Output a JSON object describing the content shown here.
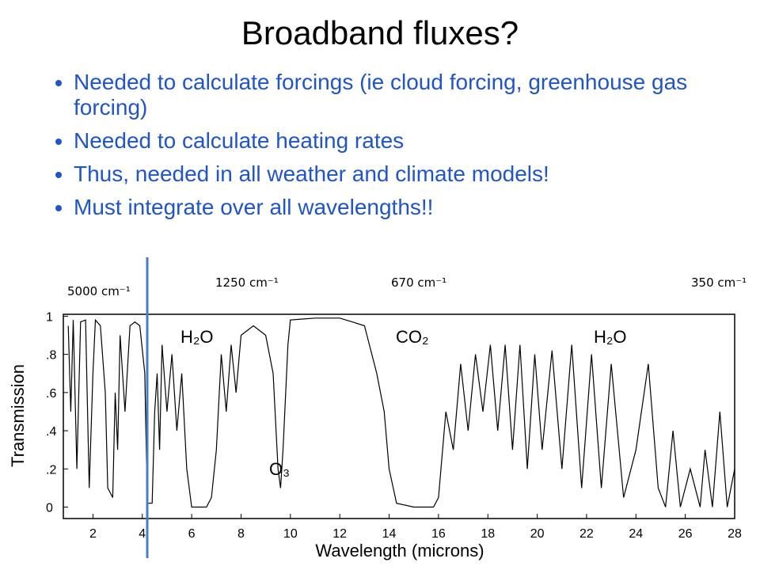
{
  "header": {
    "title": "Broadband fluxes?"
  },
  "bullets": [
    "Needed to calculate forcings (ie cloud forcing, greenhouse gas forcing)",
    "Needed to calculate heating rates",
    "Thus, needed in all weather and climate models!",
    "Must integrate over all wavelengths!!"
  ],
  "wavenumber_labels": [
    "5000 cm⁻¹",
    "1250 cm⁻¹",
    "670 cm⁻¹",
    "350 cm⁻¹"
  ],
  "chart_data": {
    "type": "line",
    "xlabel": "Wavelength (microns)",
    "ylabel": "Transmission",
    "annotations": [
      "H₂O",
      "CO₂",
      "H₂O",
      "O₃"
    ],
    "color": "#000000",
    "vline_x": 4.2,
    "vline_color": "#4a7bc4",
    "x": [
      1.0,
      1.1,
      1.2,
      1.35,
      1.5,
      1.7,
      1.85,
      2.0,
      2.1,
      2.3,
      2.5,
      2.6,
      2.8,
      2.9,
      3.0,
      3.1,
      3.3,
      3.5,
      3.7,
      3.9,
      4.1,
      4.2,
      4.4,
      4.5,
      4.6,
      4.7,
      4.8,
      5.0,
      5.2,
      5.4,
      5.6,
      5.8,
      6.0,
      6.3,
      6.6,
      6.8,
      7.0,
      7.2,
      7.4,
      7.6,
      7.8,
      8.0,
      8.5,
      9.0,
      9.3,
      9.5,
      9.6,
      9.7,
      9.9,
      10.0,
      11.0,
      12.0,
      12.5,
      13.0,
      13.5,
      13.8,
      14.0,
      14.3,
      15.0,
      15.8,
      16.0,
      16.3,
      16.6,
      16.9,
      17.2,
      17.5,
      17.8,
      18.1,
      18.4,
      18.7,
      19.0,
      19.3,
      19.6,
      19.9,
      20.2,
      20.6,
      21.0,
      21.4,
      21.8,
      22.2,
      22.6,
      23.0,
      23.5,
      24.0,
      24.5,
      24.9,
      25.2,
      25.5,
      25.8,
      26.2,
      26.6,
      26.8,
      27.1,
      27.4,
      27.7,
      28.0
    ],
    "values": [
      0.95,
      0.5,
      0.98,
      0.2,
      0.97,
      0.98,
      0.1,
      0.7,
      0.98,
      0.95,
      0.6,
      0.1,
      0.05,
      0.6,
      0.3,
      0.9,
      0.5,
      0.95,
      0.97,
      0.95,
      0.7,
      0.02,
      0.02,
      0.5,
      0.7,
      0.3,
      0.85,
      0.5,
      0.8,
      0.4,
      0.7,
      0.2,
      0.0,
      0.0,
      0.0,
      0.05,
      0.3,
      0.8,
      0.5,
      0.85,
      0.6,
      0.9,
      0.95,
      0.9,
      0.7,
      0.2,
      0.1,
      0.3,
      0.85,
      0.98,
      0.99,
      0.99,
      0.97,
      0.95,
      0.7,
      0.5,
      0.2,
      0.02,
      0.0,
      0.0,
      0.05,
      0.5,
      0.3,
      0.75,
      0.4,
      0.8,
      0.5,
      0.85,
      0.4,
      0.85,
      0.3,
      0.85,
      0.2,
      0.8,
      0.3,
      0.82,
      0.2,
      0.85,
      0.1,
      0.8,
      0.1,
      0.75,
      0.05,
      0.3,
      0.75,
      0.1,
      0.0,
      0.4,
      0.0,
      0.2,
      0.0,
      0.3,
      0.0,
      0.5,
      0.0,
      0.2
    ],
    "xlim": [
      0.8,
      28
    ],
    "xticks": [
      2,
      4,
      6,
      8,
      10,
      12,
      14,
      16,
      18,
      20,
      22,
      24,
      26,
      28
    ],
    "ylim": [
      -0.06,
      1.01
    ],
    "yticks": [
      0,
      {
        "value": 0.2,
        "label": ".2"
      },
      {
        "value": 0.4,
        "label": ".4"
      },
      {
        "value": 0.6,
        "label": ".6"
      },
      {
        "value": 0.8,
        "label": ".8"
      },
      1
    ]
  }
}
